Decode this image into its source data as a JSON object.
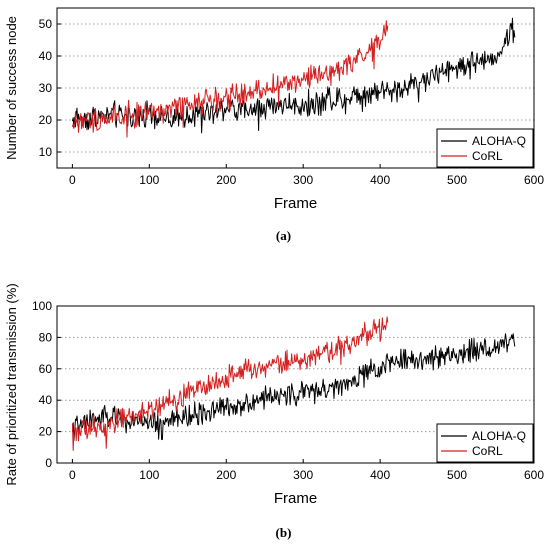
{
  "chart_data": [
    {
      "type": "line",
      "panel_label": "(a)",
      "xlabel": "Frame",
      "ylabel": "Number of success node",
      "xlim": [
        -20,
        600
      ],
      "ylim": [
        5,
        55
      ],
      "xticks": [
        0,
        100,
        200,
        300,
        400,
        500,
        600
      ],
      "yticks": [
        10,
        20,
        30,
        40,
        50
      ],
      "grid": "horizontal dotted",
      "legend": "bottom-right",
      "series": [
        {
          "name": "ALOHA-Q",
          "color": "#000000",
          "x": [
            0,
            25,
            50,
            75,
            100,
            125,
            150,
            175,
            200,
            225,
            250,
            275,
            300,
            325,
            350,
            375,
            400,
            425,
            450,
            475,
            500,
            525,
            550,
            575
          ],
          "y": [
            20,
            21,
            22,
            21,
            22,
            20,
            21,
            22,
            24,
            23,
            24,
            25,
            25,
            26,
            27,
            28,
            29,
            30,
            32,
            34,
            37,
            38,
            40,
            49
          ]
        },
        {
          "name": "CoRL",
          "color": "#d42020",
          "x": [
            0,
            25,
            50,
            75,
            100,
            125,
            150,
            175,
            200,
            225,
            250,
            275,
            300,
            325,
            350,
            375,
            400,
            410
          ],
          "y": [
            19,
            20,
            21,
            22,
            22,
            23,
            25,
            26,
            27,
            28,
            30,
            31,
            33,
            34,
            36,
            40,
            46,
            49
          ]
        }
      ]
    },
    {
      "type": "line",
      "panel_label": "(b)",
      "xlabel": "Frame",
      "ylabel": "Rate of prioritized transmission (%)",
      "xlim": [
        -20,
        600
      ],
      "ylim": [
        0,
        100
      ],
      "xticks": [
        0,
        100,
        200,
        300,
        400,
        500,
        600
      ],
      "yticks": [
        0,
        20,
        40,
        60,
        80,
        100
      ],
      "grid": "horizontal dotted",
      "legend": "bottom-right",
      "series": [
        {
          "name": "ALOHA-Q",
          "color": "#000000",
          "x": [
            0,
            25,
            50,
            75,
            100,
            125,
            150,
            175,
            200,
            225,
            250,
            275,
            300,
            325,
            350,
            375,
            400,
            425,
            450,
            475,
            500,
            525,
            550,
            575
          ],
          "y": [
            22,
            27,
            29,
            27,
            26,
            27,
            30,
            33,
            36,
            38,
            41,
            43,
            45,
            47,
            49,
            55,
            62,
            65,
            66,
            68,
            70,
            72,
            74,
            80
          ]
        },
        {
          "name": "CoRL",
          "color": "#d42020",
          "x": [
            0,
            25,
            50,
            75,
            100,
            125,
            150,
            175,
            200,
            225,
            250,
            275,
            300,
            325,
            350,
            375,
            400,
            410
          ],
          "y": [
            20,
            22,
            26,
            30,
            33,
            38,
            45,
            50,
            55,
            59,
            62,
            64,
            66,
            70,
            74,
            80,
            86,
            88
          ]
        }
      ]
    }
  ]
}
